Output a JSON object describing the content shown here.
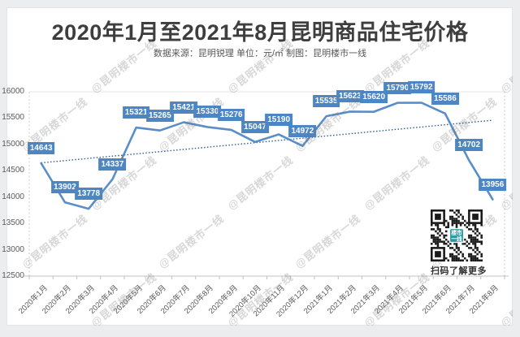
{
  "page": {
    "title": "2020年1月至2021年8月昆明商品住宅价格",
    "subtitle": "数据来源：昆明锐理 单位：元/㎡ 制图：昆明楼市一线",
    "watermark": "@昆明楼市一线"
  },
  "chart_data": {
    "type": "line",
    "title": "2020年1月至2021年8月昆明商品住宅价格",
    "unit": "元/㎡",
    "categories": [
      "2020年1月",
      "2020年2月",
      "2020年3月",
      "2020年4月",
      "2020年5月",
      "2020年6月",
      "2020年7月",
      "2020年8月",
      "2020年9月",
      "2020年10月",
      "2020年11月",
      "2020年12月",
      "2021年1月",
      "2021年2月",
      "2021年3月",
      "2021年4月",
      "2021年5月",
      "2021年6月",
      "2021年7月",
      "2021年8月"
    ],
    "values": [
      14643,
      13902,
      13778,
      14337,
      15321,
      15265,
      15421,
      15330,
      15276,
      15047,
      15190,
      14972,
      15535,
      15623,
      15620,
      15790,
      15792,
      15586,
      14702,
      13956
    ],
    "data_labels": [
      "14643",
      "13902",
      "13778",
      "14337",
      "15321",
      "15265",
      "15421",
      "15330",
      "15276",
      "15047",
      "15190",
      "14972",
      "15535",
      "15623",
      "15620",
      "15790",
      "15792",
      "15586",
      "14702",
      "13956"
    ],
    "ylim": [
      12500,
      16000
    ],
    "yticks": [
      16000,
      15500,
      15000,
      14500,
      14000,
      13500,
      13000,
      12500
    ],
    "grid": false,
    "legend": "none",
    "trendline": "linear",
    "colors": {
      "line": "#5a8ec8",
      "label_bg": "#4c86c4",
      "label_text": "#ffffff",
      "trendline": "#2d5d92",
      "axis": "#c0c0c0",
      "axis_text": "#595959"
    }
  },
  "qr": {
    "caption": "扫码了解更多",
    "center_label_line1": "楼市",
    "center_label_line2": "一线",
    "center_color": "#2a9aa4"
  }
}
